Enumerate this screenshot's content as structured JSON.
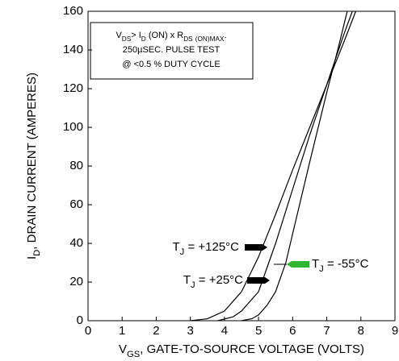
{
  "chart_data": {
    "type": "line",
    "xlabel": "VGS, GATE-TO-SOURCE VOLTAGE (VOLTS)",
    "ylabel": "ID, DRAIN CURRENT (AMPERES)",
    "note": [
      "VDS> ID (ON) x RDS (ON)MAX.",
      "250µSEC. PULSE TEST",
      "@ <0.5 % DUTY CYCLE"
    ],
    "xlim": [
      0,
      9
    ],
    "xticks": [
      0,
      1,
      2,
      3,
      4,
      5,
      6,
      7,
      8,
      9
    ],
    "ylim": [
      0,
      160
    ],
    "yticks": [
      0,
      20,
      40,
      60,
      80,
      100,
      120,
      140,
      160
    ],
    "grid": false,
    "series": [
      {
        "name": "TJ = +125°C",
        "color": "#000000",
        "label_color": "#000000",
        "x": [
          3.0,
          3.5,
          4.0,
          4.5,
          5.0,
          5.5,
          6.0,
          6.5,
          7.0,
          7.5,
          7.85
        ],
        "values": [
          0,
          1,
          5,
          15,
          33,
          55,
          78,
          100,
          122,
          144,
          160
        ]
      },
      {
        "name": "TJ = +25°C",
        "color": "#000000",
        "label_color": "#000000",
        "x": [
          3.8,
          4.25,
          4.5,
          5.0,
          5.5,
          6.0,
          6.5,
          7.0,
          7.5,
          7.75
        ],
        "values": [
          0,
          2,
          5,
          15,
          40,
          68,
          96,
          122,
          148,
          160
        ]
      },
      {
        "name": "TJ = -55°C",
        "color": "#000000",
        "label_color": "#2fb52f",
        "x": [
          4.5,
          4.8,
          5.0,
          5.25,
          5.5,
          5.8,
          6.0,
          6.5,
          7.0,
          7.35,
          7.6
        ],
        "values": [
          0,
          1,
          3,
          8,
          15,
          30,
          45,
          82,
          118,
          142,
          160
        ]
      }
    ]
  }
}
